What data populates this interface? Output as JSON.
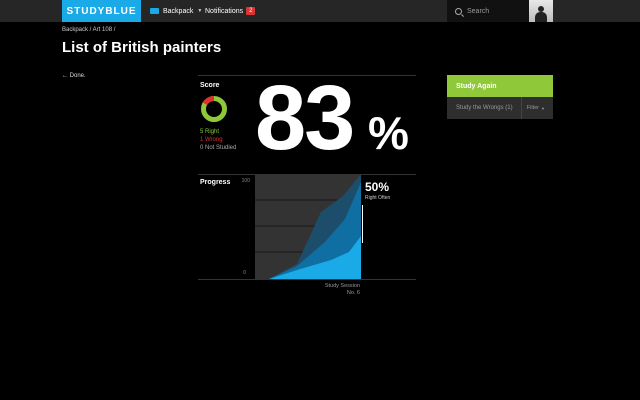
{
  "header": {
    "logo": "STUDYBLUE",
    "backpack_label": "Backpack",
    "notifications_label": "Notifications",
    "notifications_count": "2",
    "search_placeholder": "Search"
  },
  "breadcrumb": "Backpack / Art 108 /",
  "page_title": "List of British painters",
  "done_label": "← Done.",
  "score": {
    "label": "Score",
    "percent_value": "83",
    "percent_sign": "%",
    "right": "5 Right",
    "wrong": "1 Wrong",
    "not_studied": "0 Not Studied",
    "right_count": 5,
    "wrong_count": 1,
    "not_studied_count": 0
  },
  "progress": {
    "label": "Progress",
    "axis_max": "100",
    "axis_min": "0",
    "right_percent": "50%",
    "right_often_label": "Right Often",
    "session_label_line1": "Study Session",
    "session_label_line2": "No. 6"
  },
  "actions": {
    "study_again": "Study Again",
    "study_wrongs": "Study the Wrongs (1)",
    "filter": "Filter"
  },
  "colors": {
    "accent_blue": "#1aaae8",
    "green": "#8fc93a",
    "red": "#e03030"
  }
}
